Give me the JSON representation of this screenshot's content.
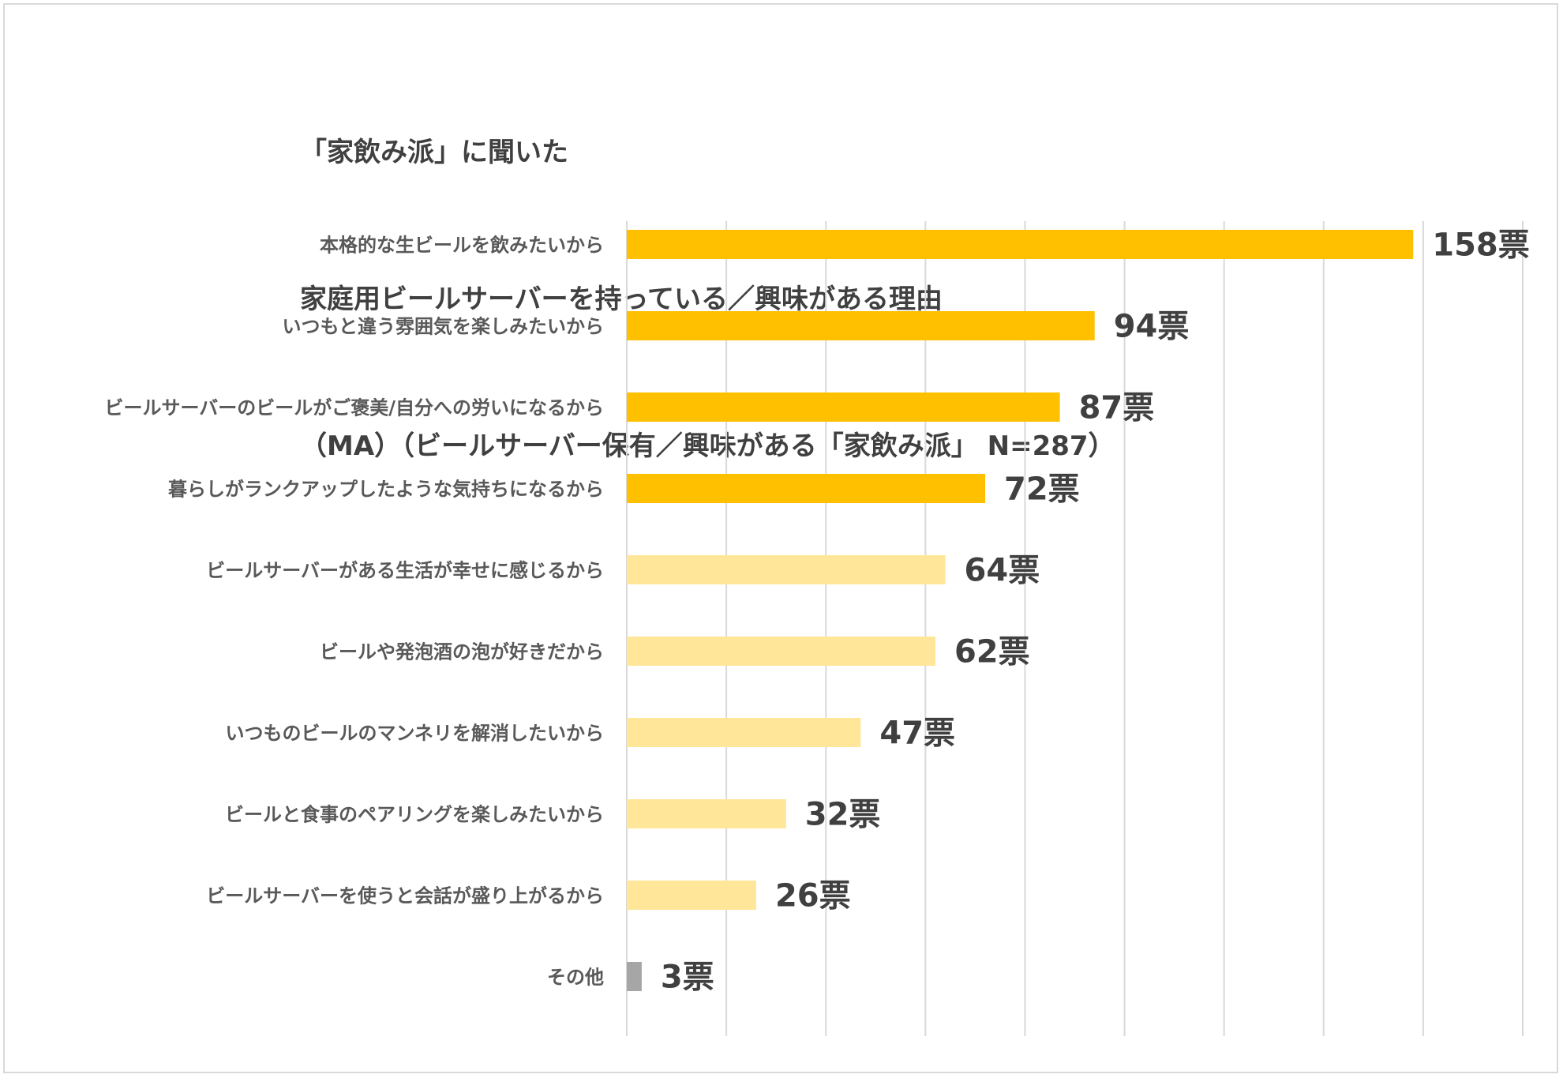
{
  "title_lines": [
    "「家飲み派」に聞いた",
    "家庭用ビールサーバーを持っている／興味がある理由",
    "（MA）（ビールサーバー保有／興味がある「家飲み派」 N=287）"
  ],
  "colors": {
    "dark": "#FFC000",
    "light": "#FFE699",
    "other": "#A6A6A6",
    "grid": "#D9D9D9"
  },
  "chart_data": {
    "type": "bar",
    "orientation": "horizontal",
    "categories": [
      "本格的な生ビールを飲みたいから",
      "いつもと違う雰囲気を楽しみたいから",
      "ビールサーバーのビールがご褒美/自分への労いになるから",
      "暮らしがランクアップしたような気持ちになるから",
      "ビールサーバーがある生活が幸せに感じるから",
      "ビールや発泡酒の泡が好きだから",
      "いつものビールのマンネリを解消したいから",
      "ビールと食事のペアリングを楽しみたいから",
      "ビールサーバーを使うと会話が盛り上がるから",
      "その他"
    ],
    "values": [
      158,
      94,
      87,
      72,
      64,
      62,
      47,
      32,
      26,
      3
    ],
    "value_labels": [
      "158票",
      "94票",
      "87票",
      "72票",
      "64票",
      "62票",
      "47票",
      "32票",
      "26票",
      "3票"
    ],
    "bar_color_groups": [
      "dark",
      "dark",
      "dark",
      "dark",
      "light",
      "light",
      "light",
      "light",
      "light",
      "other"
    ],
    "xlim": [
      0,
      180
    ],
    "grid_step": 20,
    "grid": true,
    "legend": "none"
  }
}
